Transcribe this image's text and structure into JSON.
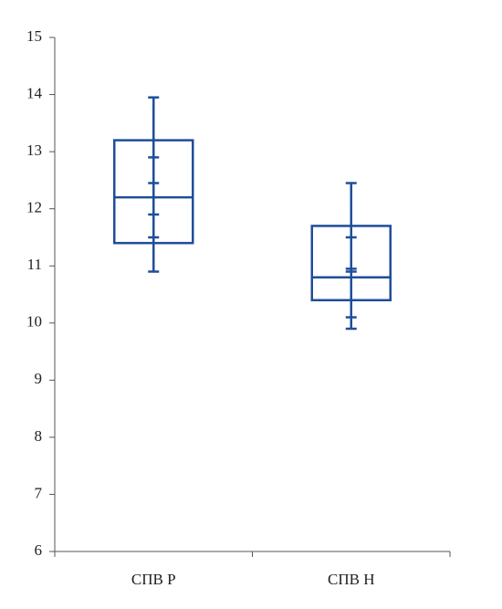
{
  "chart_data": {
    "type": "box",
    "categories": [
      "СПВ Р",
      "СПВ Н"
    ],
    "color": "#1f4e99",
    "boxes": [
      {
        "whisker_low": 10.9,
        "q1": 11.4,
        "median": 12.2,
        "q3": 13.2,
        "whisker_high": 13.95,
        "markers": [
          12.9,
          12.45,
          11.9,
          11.5
        ]
      },
      {
        "whisker_low": 9.9,
        "q1": 10.4,
        "median": 10.8,
        "q3": 11.7,
        "whisker_high": 12.45,
        "markers": [
          11.5,
          10.95,
          10.9,
          10.1
        ]
      }
    ],
    "ylim": [
      6,
      15
    ],
    "yticks": [
      6,
      7,
      8,
      9,
      10,
      11,
      12,
      13,
      14,
      15
    ]
  }
}
